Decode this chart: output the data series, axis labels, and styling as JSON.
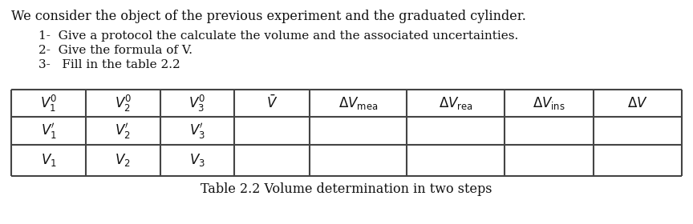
{
  "title_text": "We consider the object of the previous experiment and the graduated cylinder.",
  "items": [
    "1-  Give a protocol the calculate the volume and the associated uncertainties.",
    "2-  Give the formula of V.",
    "3-   Fill in the table 2.2"
  ],
  "table_caption": "Table 2.2 Volume determination in two steps",
  "background": "#ffffff",
  "text_color": "#111111",
  "table_line_color": "#444444",
  "title_fontsize": 11.5,
  "item_fontsize": 11.0,
  "cell_fontsize": 12.0,
  "caption_fontsize": 11.5
}
